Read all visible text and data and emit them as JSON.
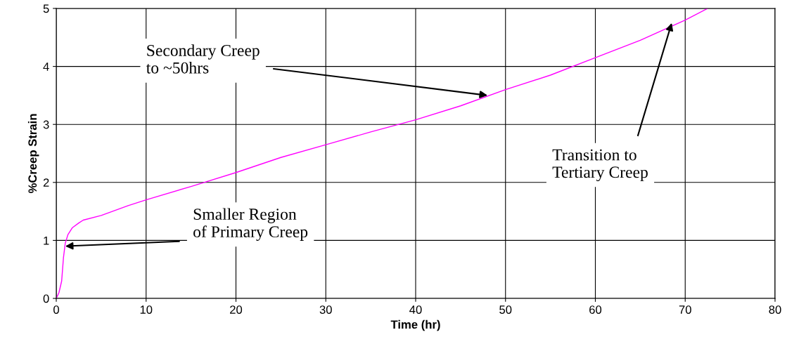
{
  "chart_data": {
    "type": "line",
    "xlabel": "Time (hr)",
    "ylabel": "%Creep Strain",
    "x": [
      0,
      0.3,
      0.6,
      0.8,
      1,
      1.3,
      1.8,
      2.5,
      3,
      5,
      8,
      10,
      15,
      20,
      25,
      30,
      35,
      40,
      45,
      50,
      55,
      60,
      65,
      70,
      72.5
    ],
    "series": [
      {
        "color": "#ff00ff",
        "values": [
          0,
          0.1,
          0.3,
          0.7,
          0.95,
          1.1,
          1.22,
          1.3,
          1.35,
          1.43,
          1.6,
          1.7,
          1.93,
          2.17,
          2.43,
          2.65,
          2.87,
          3.08,
          3.32,
          3.6,
          3.85,
          4.15,
          4.45,
          4.8,
          5.0
        ]
      }
    ],
    "xlim": [
      0,
      80
    ],
    "ylim": [
      0,
      5
    ],
    "xticks": [
      0,
      10,
      20,
      30,
      40,
      50,
      60,
      70,
      80
    ],
    "yticks": [
      0,
      1,
      2,
      3,
      4,
      5
    ],
    "grid": true,
    "marker": "none",
    "line_style": "solid",
    "annotations": [
      {
        "text": "Secondary Creep\nto ~50hrs",
        "x": 48,
        "y": 3.5
      },
      {
        "text": "Smaller Region\nof Primary Creep",
        "x": 1,
        "y": 0.9
      },
      {
        "text": "Transition to\nTertiary Creep",
        "x": 68.5,
        "y": 4.75
      }
    ]
  }
}
